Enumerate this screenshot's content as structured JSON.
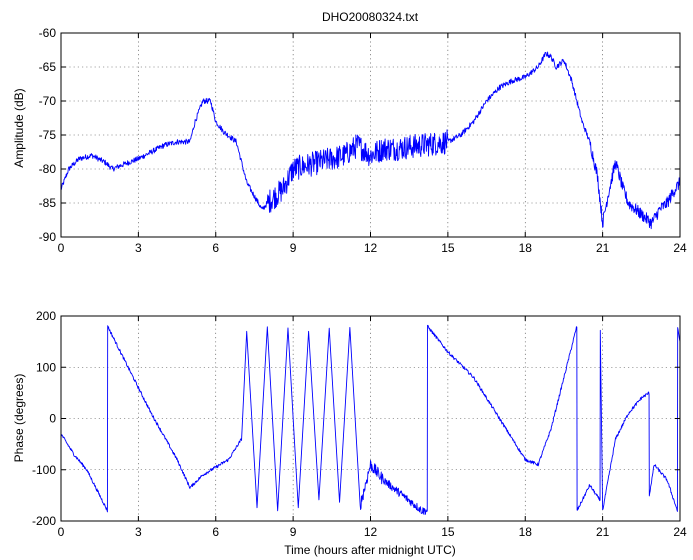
{
  "colors": {
    "trace": "#0000ff",
    "axes": "#000000",
    "background": "#ffffff"
  },
  "chart_data": [
    {
      "type": "line",
      "title": "DHO20080324.txt",
      "xlabel": "",
      "ylabel": "Amplitude (dB)",
      "xlim": [
        0,
        24
      ],
      "ylim": [
        -90,
        -60
      ],
      "xticks": [
        0,
        3,
        6,
        9,
        12,
        15,
        18,
        21,
        24
      ],
      "yticks": [
        -90,
        -85,
        -80,
        -75,
        -70,
        -65,
        -60
      ],
      "grid": true,
      "noisy": true,
      "series": [
        {
          "x": [
            0,
            0.3,
            0.7,
            1.2,
            1.7,
            2.0,
            2.3,
            3.0,
            3.5,
            4.0,
            4.5,
            5.0,
            5.2,
            5.5,
            5.8,
            6.0,
            6.3,
            6.8,
            7.0,
            7.2,
            7.5,
            7.8,
            8.0,
            8.3,
            8.6,
            9.0,
            10.0,
            11.0,
            11.5,
            12.0,
            12.5,
            13.0,
            14.0,
            15.0,
            15.5,
            16.0,
            16.5,
            17.0,
            17.5,
            18.0,
            18.5,
            18.8,
            19.0,
            19.2,
            19.5,
            19.8,
            20.0,
            20.2,
            20.5,
            20.8,
            21.0,
            21.2,
            21.5,
            21.8,
            22.0,
            22.3,
            22.6,
            22.9,
            23.2,
            23.5,
            23.8,
            24.0
          ],
          "y": [
            -83,
            -80,
            -78.5,
            -78,
            -79,
            -80,
            -79.5,
            -78.5,
            -77.5,
            -76.5,
            -76,
            -76,
            -73,
            -70,
            -70,
            -73,
            -74.5,
            -76,
            -79,
            -82,
            -84,
            -86,
            -85,
            -84,
            -83,
            -80,
            -79,
            -78,
            -76.5,
            -78,
            -77,
            -77,
            -76.5,
            -76,
            -75,
            -73,
            -70,
            -68,
            -67,
            -66.5,
            -65,
            -63,
            -63.5,
            -65,
            -64,
            -67,
            -70,
            -73,
            -76,
            -81,
            -88,
            -84,
            -79,
            -83,
            -85,
            -86,
            -87,
            -88,
            -86,
            -85,
            -83,
            -82
          ]
        }
      ]
    },
    {
      "type": "line",
      "title": "",
      "xlabel": "Time (hours after midnight UTC)",
      "ylabel": "Phase (degrees)",
      "xlim": [
        0,
        24
      ],
      "ylim": [
        -200,
        200
      ],
      "xticks": [
        0,
        3,
        6,
        9,
        12,
        15,
        18,
        21,
        24
      ],
      "yticks": [
        -200,
        -100,
        0,
        100,
        200
      ],
      "grid": true,
      "noisy": true,
      "series": [
        {
          "x": [
            0,
            0.5,
            1.0,
            1.5,
            1.8,
            1.81,
            2.5,
            3.5,
            4.5,
            5.0,
            5.5,
            6.0,
            6.5,
            7.0,
            7.2,
            7.6,
            8.0,
            8.4,
            8.8,
            9.2,
            9.6,
            10.0,
            10.4,
            10.8,
            11.2,
            11.6,
            12.0,
            12.5,
            13.0,
            13.5,
            14.0,
            14.2,
            14.21,
            15.0,
            16.0,
            17.0,
            18.0,
            18.5,
            19.0,
            19.5,
            20.0,
            20.01,
            20.5,
            20.9,
            20.91,
            21.0,
            21.5,
            22.0,
            22.5,
            22.8,
            22.81,
            23.0,
            23.5,
            23.9,
            23.91,
            24.0
          ],
          "y": [
            -30,
            -70,
            -100,
            -150,
            -180,
            180,
            110,
            10,
            -80,
            -135,
            -110,
            -95,
            -80,
            -40,
            170,
            -170,
            170,
            -170,
            170,
            -170,
            170,
            -170,
            170,
            -170,
            170,
            -170,
            -90,
            -120,
            -140,
            -160,
            -180,
            -180,
            180,
            130,
            80,
            0,
            -80,
            -90,
            -20,
            80,
            180,
            -180,
            -130,
            -160,
            175,
            -180,
            -40,
            10,
            40,
            50,
            -150,
            -90,
            -120,
            -180,
            175,
            150
          ]
        }
      ]
    }
  ]
}
